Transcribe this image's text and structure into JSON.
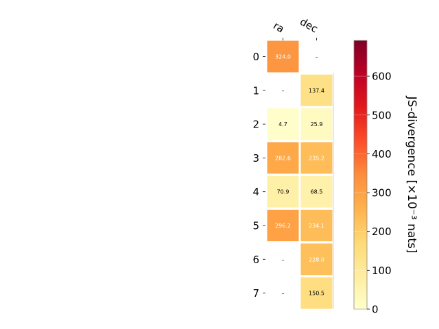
{
  "chart_data": {
    "type": "heatmap",
    "columns": [
      "ra",
      "dec"
    ],
    "rows": [
      "0",
      "1",
      "2",
      "3",
      "4",
      "5",
      "6",
      "7"
    ],
    "values": [
      [
        324.0,
        null
      ],
      [
        null,
        137.4
      ],
      [
        4.7,
        25.9
      ],
      [
        282.6,
        235.2
      ],
      [
        70.9,
        68.5
      ],
      [
        296.2,
        234.1
      ],
      [
        null,
        228.0
      ],
      [
        null,
        150.5
      ]
    ],
    "cell_labels": [
      [
        "324.0",
        "–"
      ],
      [
        "–",
        "137.4"
      ],
      [
        "4.7",
        "25.9"
      ],
      [
        "282.6",
        "235.2"
      ],
      [
        "70.9",
        "68.5"
      ],
      [
        "296.2",
        "234.1"
      ],
      [
        "–",
        "228.0"
      ],
      [
        "–",
        "150.5"
      ]
    ],
    "colorbar": {
      "label": "JS-divergence [×10⁻³ nats]",
      "colormap": "YlOrRd",
      "range": [
        0,
        692
      ],
      "ticks": [
        0,
        100,
        200,
        300,
        400,
        500,
        600
      ]
    }
  }
}
